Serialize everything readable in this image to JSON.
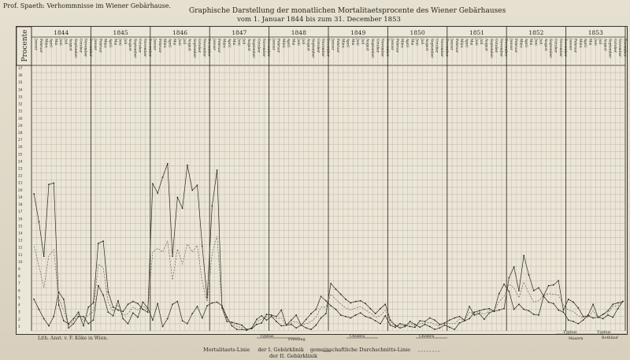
{
  "header": {
    "left": "Prof. Spaeth: Verhommnisse im Wiener Gebärhause.",
    "title": "Graphische Darstellung der monatlichen Mortalitaetsprocente des Wiener Gebärhauses",
    "subtitle": "vom 1. Januar 1844 bis zum 31. December 1853"
  },
  "footer": {
    "lithography": "Lith. Anst. v. F. Köke in Wien.",
    "legend_label": "Mortalitaets-Linie",
    "legend_clinic1": "der I. Gebärklinik",
    "legend_clinic2": "der II. Gebärklinik",
    "legend_common": "gemeinschaftliche Durchschnitts-Linie"
  },
  "chart_data": {
    "type": "line",
    "ylabel": "Procente",
    "ylim": [
      0,
      37
    ],
    "y_ticks": [
      "37",
      "36",
      "35",
      "34",
      "33",
      "32",
      "31",
      "30",
      "29",
      "28",
      "27",
      "26",
      "25",
      "24",
      "23",
      "22",
      "21",
      "20",
      "19",
      "18",
      "17",
      "16",
      "15",
      "14",
      "13",
      "12",
      "11",
      "10",
      "9",
      "8",
      "7",
      "6",
      "5",
      "4",
      "3",
      "2",
      "1"
    ],
    "years": [
      "1844",
      "1845",
      "1846",
      "1847",
      "1848",
      "1849",
      "1850",
      "1851",
      "1852",
      "1853"
    ],
    "months": [
      "Januar",
      "Februar",
      "März",
      "April",
      "Mai",
      "Juni",
      "Juli",
      "August",
      "September",
      "October",
      "November",
      "December"
    ],
    "series": [
      {
        "values": [
          19.1,
          15.2,
          10.4,
          20.4,
          20.6,
          3.6,
          1.4,
          1.0,
          1.7,
          2.6,
          0.7,
          3.3,
          3.9,
          12.2,
          12.5,
          5.4,
          3.3,
          2.9,
          2.7,
          3.7,
          4.1,
          3.8,
          3.0,
          2.6,
          20.5,
          19.2,
          21.4,
          23.3,
          10.4,
          18.6,
          17.1,
          23.1,
          19.6,
          20.3,
          11.8,
          4.6,
          17.4,
          22.4,
          3.2,
          1.3,
          1.2,
          1.0,
          0.8,
          0.2,
          0.3,
          0.9,
          1.1,
          2.3,
          2.2,
          2.0,
          2.9,
          0.8,
          0.9,
          0.4,
          0.8,
          0.4,
          0.2,
          0.8,
          1.8,
          2.4,
          6.6,
          5.8,
          5.1,
          4.4,
          3.9,
          4.1,
          4.2,
          3.8,
          3.1,
          2.4,
          3.1,
          3.7,
          1.5,
          0.8,
          0.4,
          0.6,
          1.3,
          0.9,
          0.5,
          0.9,
          0.6,
          0.2,
          0.4,
          0.8,
          0.5,
          0.2,
          1.1,
          1.4,
          1.7,
          2.6,
          2.8,
          3.0,
          3.1,
          2.7,
          2.9,
          3.1,
          7.4,
          8.9,
          5.6,
          10.5,
          7.8,
          5.6,
          6.0,
          4.9,
          6.3,
          6.4,
          7.0,
          2.9,
          4.4,
          4.0,
          3.2,
          2.0,
          2.1,
          1.8,
          1.9,
          1.7,
          2.2,
          1.9,
          3.1,
          4.1
        ]
      },
      {
        "values": [
          4.4,
          3.0,
          1.7,
          0.7,
          2.0,
          5.4,
          4.4,
          0.4,
          1.0,
          2.0,
          2.0,
          1.0,
          1.5,
          6.3,
          5.0,
          2.6,
          2.1,
          4.2,
          1.7,
          1.0,
          2.5,
          1.9,
          4.0,
          3.2,
          1.5,
          3.8,
          0.6,
          1.7,
          3.7,
          4.1,
          1.4,
          1.0,
          2.4,
          3.4,
          1.8,
          3.5,
          3.9,
          4.0,
          3.5,
          1.9,
          0.7,
          0.2,
          0.2,
          0.1,
          0.4,
          1.6,
          2.1,
          1.5,
          2.0,
          1.3,
          0.7,
          0.8,
          1.5,
          2.2,
          0.8,
          1.6,
          2.4,
          3.0,
          4.8,
          4.2,
          3.5,
          3.0,
          2.2,
          2.0,
          1.8,
          2.2,
          2.5,
          2.0,
          1.8,
          1.4,
          1.0,
          2.1,
          0.8,
          0.5,
          1.0,
          0.8,
          0.6,
          0.5,
          1.4,
          1.3,
          1.8,
          1.5,
          0.9,
          1.1,
          1.5,
          1.8,
          2.0,
          1.5,
          3.4,
          2.2,
          2.4,
          1.6,
          2.5,
          2.8,
          5.2,
          6.5,
          5.5,
          3.0,
          3.7,
          3.0,
          2.8,
          2.3,
          2.2,
          4.8,
          4.0,
          3.8,
          2.9,
          2.6,
          1.5,
          1.3,
          1.0,
          1.5,
          2.2,
          3.7,
          1.9,
          2.3,
          2.8,
          3.7,
          3.9,
          4.1
        ]
      },
      {
        "values": [
          11.8,
          9.1,
          6.0,
          10.5,
          11.3,
          4.5,
          2.9,
          0.7,
          1.4,
          2.3,
          1.4,
          2.2,
          2.7,
          9.3,
          8.8,
          4.0,
          2.7,
          3.6,
          2.2,
          2.4,
          3.3,
          2.9,
          3.5,
          2.9,
          11.0,
          11.5,
          11.0,
          12.5,
          7.1,
          11.4,
          9.3,
          12.1,
          11.0,
          11.9,
          6.8,
          4.1,
          10.7,
          13.2,
          3.4,
          1.6,
          1.0,
          0.6,
          0.5,
          0.2,
          0.4,
          1.3,
          1.6,
          1.9,
          2.1,
          1.7,
          1.8,
          0.8,
          1.2,
          1.3,
          0.8,
          1.0,
          1.3,
          1.9,
          3.3,
          3.3,
          5.1,
          4.4,
          3.7,
          3.2,
          2.9,
          3.2,
          3.4,
          2.9,
          2.5,
          1.9,
          2.1,
          2.9,
          1.2,
          0.7,
          0.7,
          0.7,
          1.0,
          0.7,
          1.0,
          1.1,
          1.2,
          0.9,
          0.7,
          1.0,
          1.0,
          1.0,
          1.6,
          1.5,
          2.6,
          2.4,
          2.6,
          2.3,
          2.8,
          2.8,
          4.1,
          4.8,
          6.5,
          6.0,
          4.6,
          6.8,
          5.3,
          4.0,
          4.2,
          4.9,
          5.2,
          5.1,
          5.0,
          3.6,
          2.9,
          2.7,
          2.1,
          1.8,
          1.9,
          2.8,
          1.8,
          2.3,
          2.5,
          3.4,
          3.5,
          4.1
        ]
      }
    ],
    "annotations": [
      "Typhus",
      "Friesling",
      "Cholera",
      "Cholera",
      "Typhus",
      "Masern",
      "Typhus",
      "Rothlauf"
    ]
  }
}
